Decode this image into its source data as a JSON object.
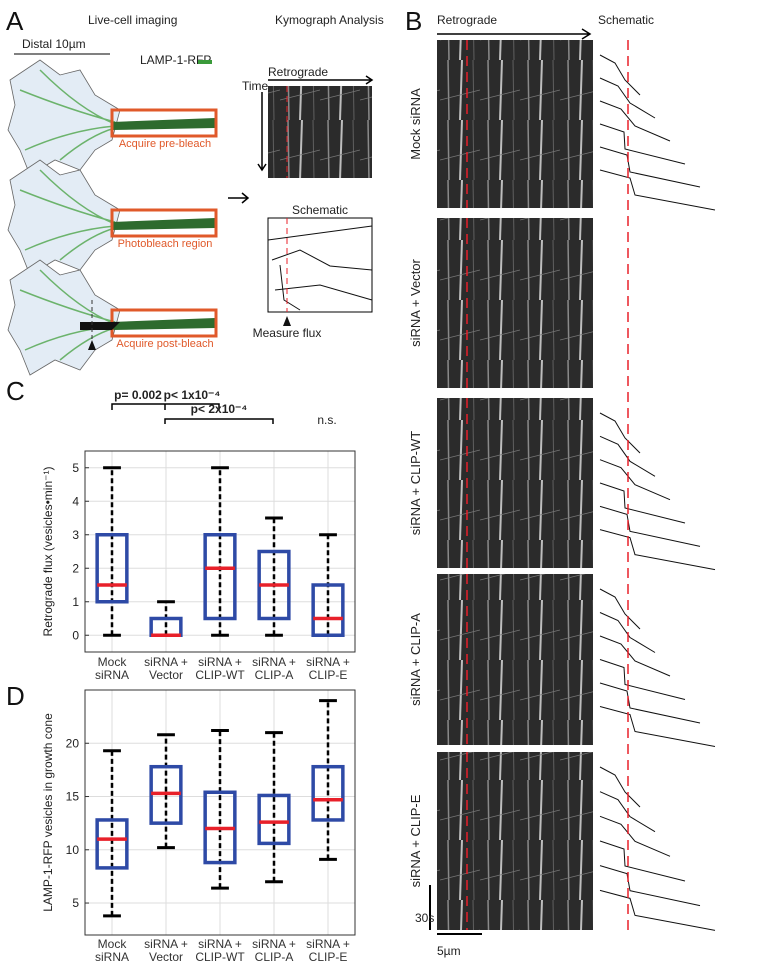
{
  "panels": {
    "A": {
      "label": "A",
      "title_left": "Live-cell imaging",
      "title_right": "Kymograph Analysis",
      "scale": "Distal 10µm",
      "marker": "LAMP-1-RFP",
      "steps": [
        "Acquire pre-bleach",
        "Photobleach region",
        "Acquire post-bleach"
      ],
      "kymo_direction": "Retrograde",
      "kymo_time": "Time",
      "schematic": "Schematic",
      "measure": "Measure flux"
    },
    "B": {
      "label": "B",
      "direction": "Retrograde",
      "schematic": "Schematic",
      "rows": [
        "Mock siRNA",
        "siRNA + Vector",
        "siRNA + CLIP-WT",
        "siRNA + CLIP-A",
        "siRNA + CLIP-E"
      ],
      "time_scale": "30s",
      "space_scale": "5µm"
    },
    "C": {
      "label": "C"
    },
    "D": {
      "label": "D"
    }
  },
  "chart_data": [
    {
      "type": "box",
      "ylabel": "Retrograde flux (vesicles•min⁻¹)",
      "categories": [
        "Mock siRNA",
        "siRNA + Vector",
        "siRNA + CLIP-WT",
        "siRNA + CLIP-A",
        "siRNA + CLIP-E"
      ],
      "boxes": [
        {
          "min": 0,
          "q1": 1,
          "median": 1.5,
          "q3": 3,
          "max": 5
        },
        {
          "min": 0,
          "q1": 0,
          "median": 0,
          "q3": 0.5,
          "max": 1
        },
        {
          "min": 0,
          "q1": 0.5,
          "median": 2,
          "q3": 3,
          "max": 5
        },
        {
          "min": 0,
          "q1": 0.5,
          "median": 1.5,
          "q3": 2.5,
          "max": 3.5
        },
        {
          "min": 0,
          "q1": 0,
          "median": 0.5,
          "q3": 1.5,
          "max": 3
        }
      ],
      "box_color": "#2e4aa6",
      "median_color": "#e8202a",
      "whisker_color": "#000000",
      "ylim": [
        -0.5,
        5.5
      ],
      "yticks": [
        0,
        1,
        2,
        3,
        4,
        5
      ],
      "grid": true,
      "annotations": [
        "p= 0.002",
        "p< 1x10⁻⁴",
        "p< 2x10⁻⁴",
        "n.s."
      ]
    },
    {
      "type": "box",
      "ylabel": "LAMP-1-RFP vesicles in growth cone",
      "categories": [
        "Mock siRNA",
        "siRNA + Vector",
        "siRNA + CLIP-WT",
        "siRNA + CLIP-A",
        "siRNA + CLIP-E"
      ],
      "boxes": [
        {
          "min": 3.8,
          "q1": 8.3,
          "median": 11,
          "q3": 12.8,
          "max": 19.3
        },
        {
          "min": 10.2,
          "q1": 12.5,
          "median": 15.3,
          "q3": 17.8,
          "max": 20.8
        },
        {
          "min": 6.4,
          "q1": 8.8,
          "median": 12,
          "q3": 15.4,
          "max": 21.2
        },
        {
          "min": 7,
          "q1": 10.6,
          "median": 12.6,
          "q3": 15.1,
          "max": 21
        },
        {
          "min": 9.1,
          "q1": 12.8,
          "median": 14.7,
          "q3": 17.8,
          "max": 24
        }
      ],
      "box_color": "#2e4aa6",
      "median_color": "#e8202a",
      "whisker_color": "#000000",
      "ylim": [
        2,
        25
      ],
      "yticks": [
        5,
        10,
        15,
        20
      ],
      "grid": true
    }
  ]
}
